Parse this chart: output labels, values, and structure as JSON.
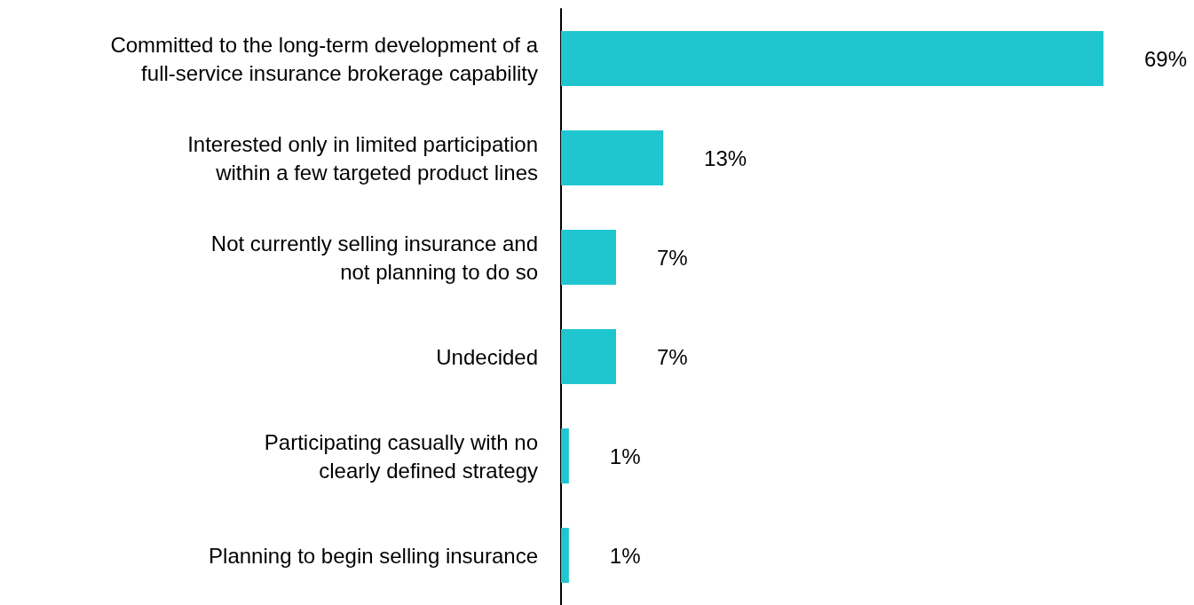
{
  "chart_data": {
    "type": "bar",
    "orientation": "horizontal",
    "categories": [
      "Committed to the long-term development of a\nfull-service insurance brokerage capability",
      "Interested only in limited participation\nwithin a few targeted product lines",
      "Not currently selling insurance and\nnot planning to do so",
      "Undecided",
      "Participating casually with no\nclearly defined strategy",
      "Planning to begin selling insurance"
    ],
    "values": [
      69,
      13,
      7,
      7,
      1,
      1
    ],
    "value_labels": [
      "69%",
      "13%",
      "7%",
      "7%",
      "1%",
      "1%"
    ],
    "color": "#1fc6d0"
  }
}
